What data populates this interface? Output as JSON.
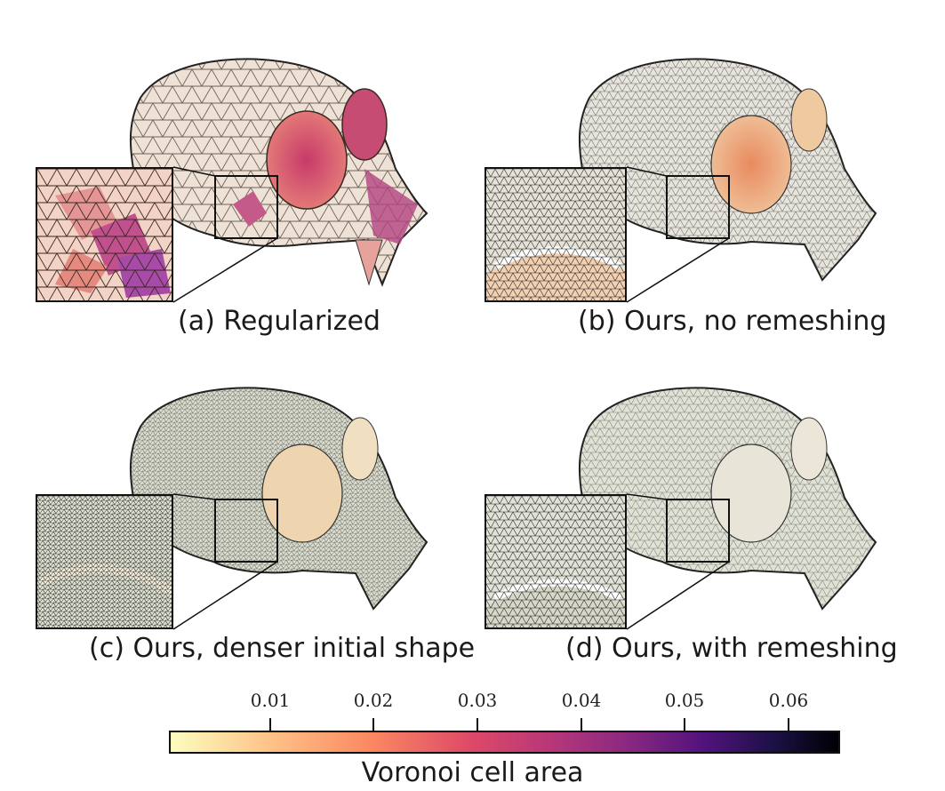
{
  "panels": [
    {
      "caption": "(a) Regularized",
      "mesh": "coarse-irregular"
    },
    {
      "caption": "(b) Ours, no remeshing",
      "mesh": "regular"
    },
    {
      "caption": "(c) Ours, denser initial shape",
      "mesh": "dense"
    },
    {
      "caption": "(d) Ours, with remeshing",
      "mesh": "remeshed"
    }
  ],
  "colorbar": {
    "title": "Voronoi cell area",
    "colormap": "magma (reversed)",
    "ticks": [
      "0.01",
      "0.02",
      "0.03",
      "0.04",
      "0.05",
      "0.06"
    ]
  },
  "colors": {
    "bone": "#ede2d2",
    "hot": "#d65a6c",
    "purple": "#8c2981"
  }
}
